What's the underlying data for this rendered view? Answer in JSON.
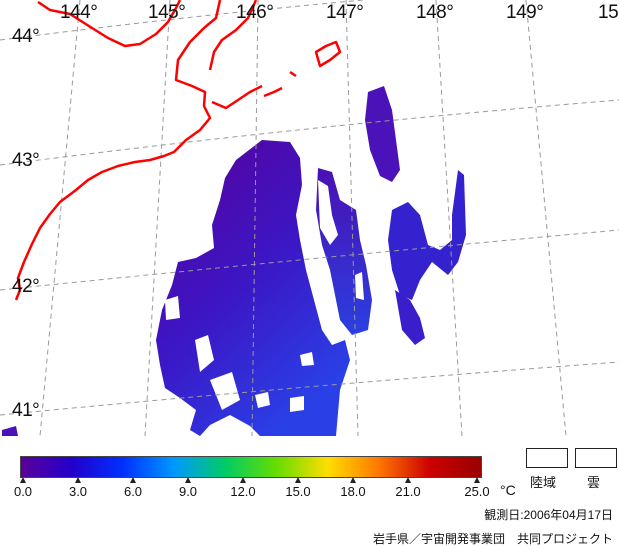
{
  "map": {
    "longitude_labels": [
      "144°",
      "145°",
      "146°",
      "147°",
      "148°",
      "149°",
      "15"
    ],
    "latitude_labels": [
      "44°",
      "43°",
      "42°",
      "41°"
    ]
  },
  "colorbar": {
    "tick_labels": [
      "0.0",
      "3.0",
      "6.0",
      "9.0",
      "12.0",
      "15.0",
      "18.0",
      "21.0",
      "25.0"
    ],
    "unit": "°C",
    "colors": [
      "#5a0099",
      "#2200cc",
      "#0030ff",
      "#0099ff",
      "#00cc66",
      "#66dd00",
      "#ffdd00",
      "#ff7700",
      "#cc0000",
      "#990000"
    ]
  },
  "legend": {
    "land_label": "陸域",
    "cloud_label": "雲"
  },
  "observation_date": "観測日:2006年04月17日",
  "credit": "岩手県／宇宙開発事業団　共同プロジェクト",
  "colors": {
    "coastline": "#ff0000",
    "grid": "#999999",
    "sst_cold": "#5a0099",
    "sst_mid": "#3a2fd8"
  }
}
